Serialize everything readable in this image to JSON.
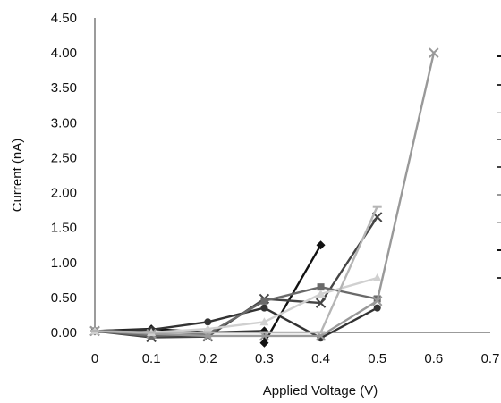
{
  "chart_data": {
    "type": "line",
    "title": "",
    "xlabel": "Applied Voltage (V)",
    "ylabel": "Current (nA)",
    "xlim": [
      0,
      0.7
    ],
    "ylim": [
      0,
      4.5
    ],
    "grid": false,
    "legend": "right (clipped)",
    "x_ticks": [
      "0",
      "0.1",
      "0.2",
      "0.3",
      "0.4",
      "0.5",
      "0.6",
      "0.7"
    ],
    "y_ticks": [
      "0.00",
      "0.50",
      "1.00",
      "1.50",
      "2.00",
      "2.50",
      "3.00",
      "3.50",
      "4.00",
      "4.50"
    ],
    "series": [
      {
        "color": "#111111",
        "marker": "diamond",
        "x": [
          0,
          0.1,
          0.2,
          0.3,
          0.3,
          0.4
        ],
        "y": [
          0.02,
          0.05,
          0.0,
          0.02,
          -0.15,
          1.25
        ]
      },
      {
        "color": "#333333",
        "marker": "circle",
        "x": [
          0,
          0.1,
          0.2,
          0.3,
          0.4,
          0.5
        ],
        "y": [
          0.02,
          0.04,
          0.15,
          0.35,
          -0.08,
          0.35
        ]
      },
      {
        "color": "#444444",
        "marker": "x",
        "x": [
          0,
          0.1,
          0.2,
          0.3,
          0.4,
          0.5
        ],
        "y": [
          0.02,
          -0.07,
          -0.06,
          0.48,
          0.42,
          1.65
        ]
      },
      {
        "color": "#6a6a6a",
        "marker": "square",
        "x": [
          0,
          0.1,
          0.2,
          0.3,
          0.4,
          0.5
        ],
        "y": [
          0.02,
          -0.05,
          -0.02,
          0.45,
          0.65,
          0.48
        ]
      },
      {
        "color": "#999999",
        "marker": "x",
        "x": [
          0,
          0.1,
          0.2,
          0.3,
          0.4,
          0.5,
          0.6
        ],
        "y": [
          0.02,
          -0.02,
          -0.05,
          -0.05,
          -0.05,
          0.45,
          4.0
        ]
      },
      {
        "color": "#d0d0d0",
        "marker": "triangle",
        "x": [
          0,
          0.1,
          0.2,
          0.3,
          0.4,
          0.5
        ],
        "y": [
          0.02,
          0.0,
          0.05,
          0.15,
          0.55,
          0.78
        ]
      },
      {
        "color": "#b5b5b5",
        "marker": "dash",
        "x": [
          0,
          0.1,
          0.2,
          0.3,
          0.4,
          0.5
        ],
        "y": [
          0.02,
          0.0,
          0.0,
          0.0,
          0.0,
          1.8
        ]
      }
    ]
  }
}
